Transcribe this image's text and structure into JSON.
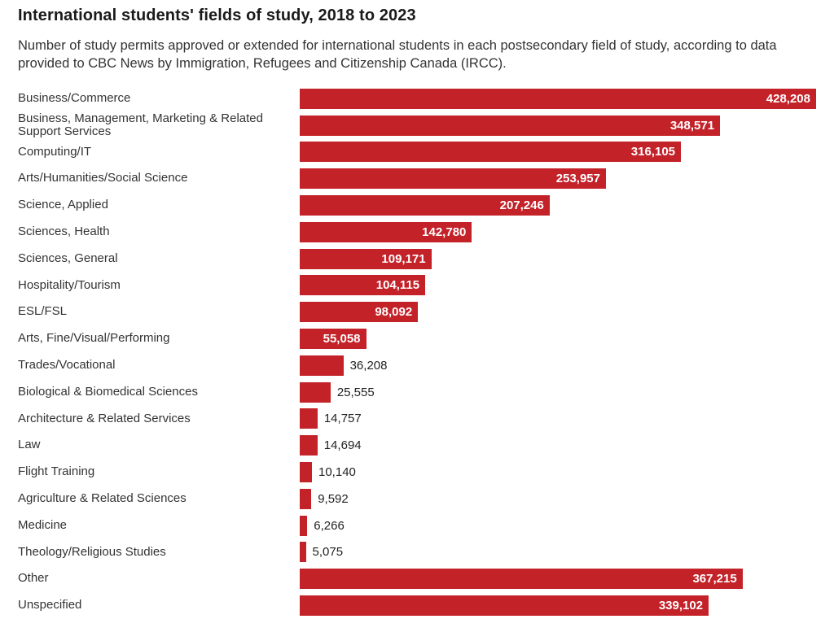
{
  "header": {
    "title": "International students' fields of study, 2018 to 2023",
    "subtitle": "Number of study permits approved or extended for international students in each postsecondary field of study, according to data provided to CBC News by Immigration, Refugees and Citizenship Canada (IRCC)."
  },
  "chart_data": {
    "type": "bar",
    "orientation": "horizontal",
    "title": "International students' fields of study, 2018 to 2023",
    "xlabel": "",
    "ylabel": "",
    "xlim": [
      0,
      428208
    ],
    "grid": false,
    "legend": false,
    "bar_color": "#c32229",
    "inside_value_color": "#ffffff",
    "outside_value_color": "#222222",
    "categories": [
      "Business/Commerce",
      "Business, Management, Marketing & Related Support Services",
      "Computing/IT",
      "Arts/Humanities/Social Science",
      "Science, Applied",
      "Sciences, Health",
      "Sciences, General",
      "Hospitality/Tourism",
      "ESL/FSL",
      "Arts, Fine/Visual/Performing",
      "Trades/Vocational",
      "Biological & Biomedical Sciences",
      "Architecture & Related Services",
      "Law",
      "Flight Training",
      "Agriculture & Related Sciences",
      "Medicine",
      "Theology/Religious Studies",
      "Other",
      "Unspecified"
    ],
    "values": [
      428208,
      348571,
      316105,
      253957,
      207246,
      142780,
      109171,
      104115,
      98092,
      55058,
      36208,
      25555,
      14757,
      14694,
      10140,
      9592,
      6266,
      5075,
      367215,
      339102
    ],
    "value_labels": [
      "428,208",
      "348,571",
      "316,105",
      "253,957",
      "207,246",
      "142,780",
      "109,171",
      "104,115",
      "98,092",
      "55,058",
      "36,208",
      "25,555",
      "14,757",
      "14,694",
      "10,140",
      "9,592",
      "6,266",
      "5,075",
      "367,215",
      "339,102"
    ]
  }
}
